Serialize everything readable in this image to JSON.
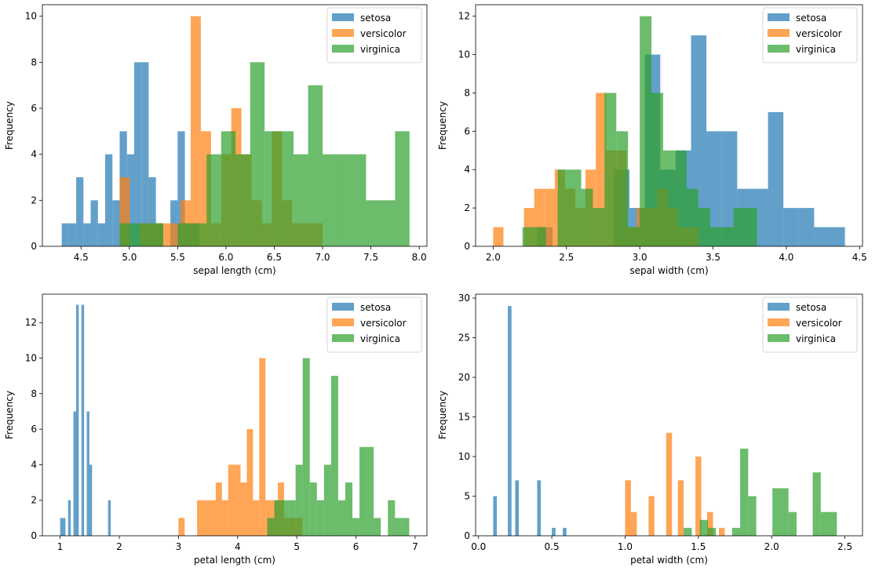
{
  "colors": {
    "setosa": "#1f77b4",
    "versicolor": "#ff7f0e",
    "virginica": "#2ca02c"
  },
  "chart_data": [
    {
      "type": "bar",
      "xlabel": "sepal length (cm)",
      "ylabel": "Frequency",
      "xlim": [
        4.1,
        8.08
      ],
      "ylim": [
        0,
        10.5
      ],
      "xticks": [
        4.5,
        5.0,
        5.5,
        6.0,
        6.5,
        7.0,
        7.5,
        8.0
      ],
      "xtick_labels": [
        "4.5",
        "5.0",
        "5.5",
        "6.0",
        "6.5",
        "7.0",
        "7.5",
        "8.0"
      ],
      "yticks": [
        0,
        2,
        4,
        6,
        8,
        10
      ],
      "ytick_labels": [
        "0",
        "2",
        "4",
        "6",
        "8",
        "10"
      ],
      "legend": [
        "setosa",
        "versicolor",
        "virginica"
      ],
      "series": [
        {
          "name": "setosa",
          "start": 4.3,
          "width": 0.075,
          "values": [
            1,
            1,
            3,
            1,
            2,
            1,
            4,
            2,
            5,
            4,
            8,
            8,
            3,
            1,
            0,
            2,
            5,
            1,
            1,
            0
          ]
        },
        {
          "name": "versicolor",
          "start": 4.9,
          "width": 0.105,
          "values": [
            3,
            0,
            1,
            1,
            1,
            1,
            2,
            10,
            5,
            1,
            4,
            6,
            4,
            2,
            1,
            5,
            2,
            1,
            1,
            1
          ]
        },
        {
          "name": "virginica",
          "start": 4.9,
          "width": 0.15,
          "values": [
            1,
            1,
            1,
            0,
            1,
            1,
            4,
            5,
            4,
            8,
            5,
            5,
            4,
            7,
            4,
            4,
            4,
            2,
            2,
            5
          ]
        }
      ]
    },
    {
      "type": "bar",
      "xlabel": "sepal width (cm)",
      "ylabel": "Frequency",
      "xlim": [
        1.88,
        4.52
      ],
      "ylim": [
        0,
        12.6
      ],
      "xticks": [
        2.0,
        2.5,
        3.0,
        3.5,
        4.0,
        4.5
      ],
      "xtick_labels": [
        "2.0",
        "2.5",
        "3.0",
        "3.5",
        "4.0",
        "4.5"
      ],
      "yticks": [
        0,
        2,
        4,
        6,
        8,
        10,
        12
      ],
      "ytick_labels": [
        "0",
        "2",
        "4",
        "6",
        "8",
        "10",
        "12"
      ],
      "legend": [
        "setosa",
        "versicolor",
        "virginica"
      ],
      "series": [
        {
          "name": "setosa",
          "start": 2.3,
          "width": 0.105,
          "values": [
            1,
            0,
            0,
            0,
            0,
            4,
            2,
            10,
            4,
            5,
            11,
            6,
            6,
            3,
            3,
            7,
            2,
            2,
            1,
            1
          ]
        },
        {
          "name": "versicolor",
          "start": 2.0,
          "width": 0.07,
          "values": [
            1,
            0,
            0,
            2,
            3,
            3,
            4,
            3,
            2,
            4,
            8,
            5,
            5,
            1,
            2,
            2,
            3,
            2,
            1,
            1
          ]
        },
        {
          "name": "virginica",
          "start": 2.2,
          "width": 0.08,
          "values": [
            1,
            1,
            0,
            4,
            4,
            3,
            2,
            8,
            6,
            1,
            12,
            8,
            5,
            5,
            3,
            2,
            1,
            1,
            2,
            2
          ]
        }
      ]
    },
    {
      "type": "bar",
      "xlabel": "petal length (cm)",
      "ylabel": "Frequency",
      "xlim": [
        0.7,
        7.2
      ],
      "ylim": [
        0,
        13.6
      ],
      "xticks": [
        1,
        2,
        3,
        4,
        5,
        6,
        7
      ],
      "xtick_labels": [
        "1",
        "2",
        "3",
        "4",
        "5",
        "6",
        "7"
      ],
      "yticks": [
        0,
        2,
        4,
        6,
        8,
        10,
        12
      ],
      "ytick_labels": [
        "0",
        "2",
        "4",
        "6",
        "8",
        "10",
        "12"
      ],
      "legend": [
        "setosa",
        "versicolor",
        "virginica"
      ],
      "series": [
        {
          "name": "setosa",
          "start": 1.0,
          "width": 0.045,
          "values": [
            1,
            1,
            0,
            2,
            0,
            7,
            13,
            0,
            13,
            0,
            7,
            4,
            0,
            0,
            0,
            0,
            0,
            0,
            2,
            0
          ]
        },
        {
          "name": "versicolor",
          "start": 3.0,
          "width": 0.105,
          "values": [
            1,
            0,
            0,
            2,
            2,
            2,
            3,
            2,
            4,
            4,
            3,
            6,
            2,
            10,
            2,
            2,
            3,
            1,
            1,
            1
          ]
        },
        {
          "name": "virginica",
          "start": 4.5,
          "width": 0.12,
          "values": [
            1,
            2,
            2,
            2,
            4,
            10,
            3,
            2,
            4,
            9,
            2,
            3,
            1,
            5,
            5,
            1,
            0,
            2,
            1,
            1
          ]
        }
      ]
    },
    {
      "type": "bar",
      "xlabel": "petal width (cm)",
      "ylabel": "Frequency",
      "xlim": [
        -0.02,
        2.62
      ],
      "ylim": [
        0,
        30.5
      ],
      "xticks": [
        0.0,
        0.5,
        1.0,
        1.5,
        2.0,
        2.5
      ],
      "xtick_labels": [
        "0.0",
        "0.5",
        "1.0",
        "1.5",
        "2.0",
        "2.5"
      ],
      "yticks": [
        0,
        5,
        10,
        15,
        20,
        25,
        30
      ],
      "ytick_labels": [
        "0",
        "5",
        "10",
        "15",
        "20",
        "25",
        "30"
      ],
      "legend": [
        "setosa",
        "versicolor",
        "virginica"
      ],
      "series": [
        {
          "name": "setosa",
          "start": 0.1,
          "width": 0.025,
          "values": [
            5,
            0,
            0,
            0,
            29,
            0,
            7,
            0,
            0,
            0,
            0,
            0,
            7,
            0,
            0,
            0,
            1,
            0,
            0,
            1
          ]
        },
        {
          "name": "versicolor",
          "start": 1.0,
          "width": 0.04,
          "values": [
            7,
            3,
            0,
            0,
            5,
            0,
            0,
            13,
            0,
            7,
            0,
            0,
            10,
            0,
            3,
            0,
            1,
            0,
            0,
            0
          ]
        },
        {
          "name": "virginica",
          "start": 1.4,
          "width": 0.055,
          "values": [
            1,
            0,
            2,
            1,
            0,
            0,
            1,
            11,
            5,
            0,
            0,
            6,
            6,
            3,
            0,
            0,
            8,
            3,
            3,
            0
          ]
        }
      ]
    }
  ]
}
